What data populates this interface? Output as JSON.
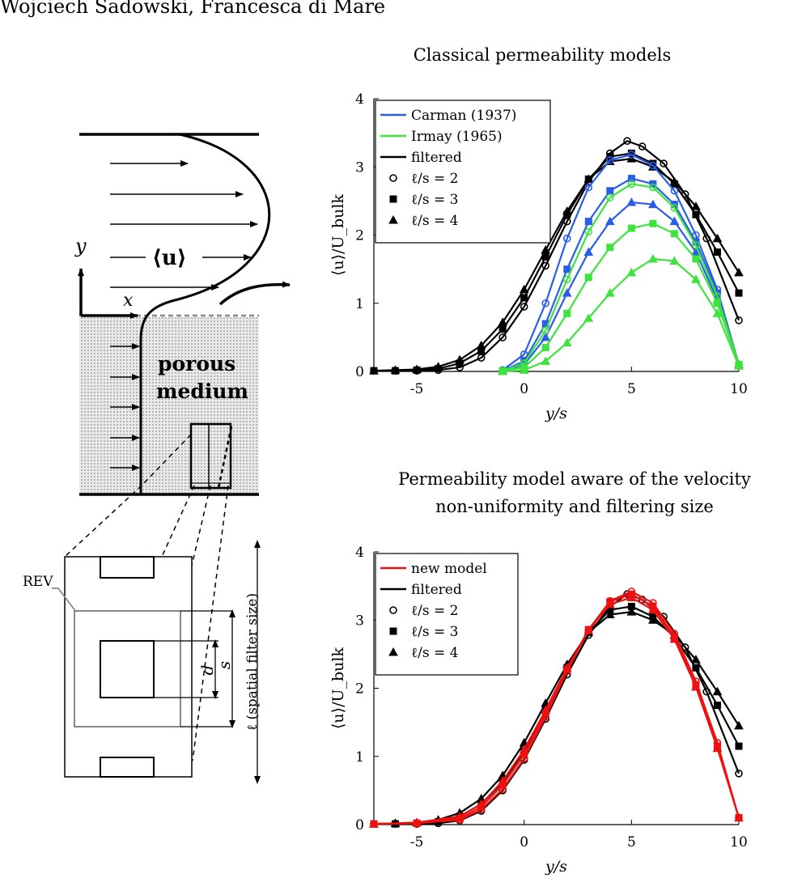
{
  "header": {
    "authors": "Wojciech Sadowski, Francesca di Mare"
  },
  "schematic": {
    "y_label": "y",
    "x_label": "x",
    "u_label": "⟨u⟩",
    "porous_label_1": "porous",
    "porous_label_2": "medium",
    "rev_label": "REV",
    "d_label": "d",
    "s_label": "s",
    "l_label": "ℓ (spatial filter size)"
  },
  "chart_data": [
    {
      "type": "line",
      "title": "Classical permeability models",
      "xlabel": "y/s",
      "ylabel": "⟨u⟩/U_bulk",
      "xlim": [
        -7,
        10
      ],
      "ylim": [
        0,
        4
      ],
      "xticks": [
        -5,
        0,
        5,
        10
      ],
      "yticks": [
        0,
        1,
        2,
        3,
        4
      ],
      "legend_position": "top-left",
      "legend": [
        "Carman (1937)",
        "Irmay (1965)",
        "filtered",
        "ℓ/s = 2",
        "ℓ/s = 3",
        "ℓ/s = 4"
      ],
      "colors": {
        "Carman (1937)": "#2a5ee8",
        "Irmay (1965)": "#3ee33e",
        "filtered": "#000000"
      },
      "series": [
        {
          "name": "filtered",
          "marker": "circle",
          "values": [
            [
              -7,
              0.01
            ],
            [
              -6,
              0.01
            ],
            [
              -5,
              0.01
            ],
            [
              -4,
              0.02
            ],
            [
              -3,
              0.06
            ],
            [
              -2,
              0.2
            ],
            [
              -1,
              0.5
            ],
            [
              0,
              0.95
            ],
            [
              1,
              1.55
            ],
            [
              2,
              2.2
            ],
            [
              3,
              2.78
            ],
            [
              4,
              3.2
            ],
            [
              4.8,
              3.38
            ],
            [
              5.5,
              3.3
            ],
            [
              6.5,
              3.05
            ],
            [
              7.5,
              2.6
            ],
            [
              8.5,
              1.95
            ],
            [
              10,
              0.75
            ]
          ]
        },
        {
          "name": "filtered",
          "marker": "square",
          "values": [
            [
              -7,
              0.01
            ],
            [
              -6,
              0.01
            ],
            [
              -5,
              0.02
            ],
            [
              -4,
              0.04
            ],
            [
              -3,
              0.12
            ],
            [
              -2,
              0.3
            ],
            [
              -1,
              0.62
            ],
            [
              0,
              1.08
            ],
            [
              1,
              1.68
            ],
            [
              2,
              2.3
            ],
            [
              3,
              2.82
            ],
            [
              4,
              3.15
            ],
            [
              5,
              3.2
            ],
            [
              6,
              3.05
            ],
            [
              7,
              2.75
            ],
            [
              8,
              2.3
            ],
            [
              9,
              1.75
            ],
            [
              10,
              1.15
            ]
          ]
        },
        {
          "name": "filtered",
          "marker": "triangle",
          "values": [
            [
              -7,
              0.01
            ],
            [
              -6,
              0.02
            ],
            [
              -5,
              0.03
            ],
            [
              -4,
              0.07
            ],
            [
              -3,
              0.17
            ],
            [
              -2,
              0.38
            ],
            [
              -1,
              0.72
            ],
            [
              0,
              1.2
            ],
            [
              1,
              1.78
            ],
            [
              2,
              2.35
            ],
            [
              3,
              2.82
            ],
            [
              4,
              3.08
            ],
            [
              5,
              3.12
            ],
            [
              6,
              3.0
            ],
            [
              7,
              2.78
            ],
            [
              8,
              2.42
            ],
            [
              9,
              1.95
            ],
            [
              10,
              1.45
            ]
          ]
        },
        {
          "name": "Carman (1937)",
          "marker": "circle",
          "values": [
            [
              -1,
              0.02
            ],
            [
              0,
              0.25
            ],
            [
              1,
              1.0
            ],
            [
              2,
              1.95
            ],
            [
              3,
              2.7
            ],
            [
              4,
              3.1
            ],
            [
              5,
              3.18
            ],
            [
              6,
              3.02
            ],
            [
              7,
              2.65
            ],
            [
              8,
              2.0
            ],
            [
              9,
              1.2
            ],
            [
              10,
              0.1
            ]
          ]
        },
        {
          "name": "Carman (1937)",
          "marker": "square",
          "values": [
            [
              -1,
              0.01
            ],
            [
              0,
              0.15
            ],
            [
              1,
              0.7
            ],
            [
              2,
              1.5
            ],
            [
              3,
              2.2
            ],
            [
              4,
              2.65
            ],
            [
              5,
              2.83
            ],
            [
              6,
              2.75
            ],
            [
              7,
              2.45
            ],
            [
              8,
              1.9
            ],
            [
              9,
              1.15
            ],
            [
              10,
              0.1
            ]
          ]
        },
        {
          "name": "Carman (1937)",
          "marker": "triangle",
          "values": [
            [
              -1,
              0.01
            ],
            [
              0,
              0.1
            ],
            [
              1,
              0.5
            ],
            [
              2,
              1.15
            ],
            [
              3,
              1.75
            ],
            [
              4,
              2.2
            ],
            [
              5,
              2.48
            ],
            [
              6,
              2.45
            ],
            [
              7,
              2.2
            ],
            [
              8,
              1.75
            ],
            [
              9,
              1.05
            ],
            [
              10,
              0.1
            ]
          ]
        },
        {
          "name": "Irmay (1965)",
          "marker": "circle",
          "values": [
            [
              -1,
              0.01
            ],
            [
              0,
              0.12
            ],
            [
              1,
              0.6
            ],
            [
              2,
              1.35
            ],
            [
              3,
              2.05
            ],
            [
              4,
              2.55
            ],
            [
              5,
              2.75
            ],
            [
              6,
              2.7
            ],
            [
              7,
              2.4
            ],
            [
              8,
              1.85
            ],
            [
              9,
              1.1
            ],
            [
              10,
              0.1
            ]
          ]
        },
        {
          "name": "Irmay (1965)",
          "marker": "square",
          "values": [
            [
              -1,
              0.01
            ],
            [
              0,
              0.06
            ],
            [
              1,
              0.35
            ],
            [
              2,
              0.85
            ],
            [
              3,
              1.38
            ],
            [
              4,
              1.82
            ],
            [
              5,
              2.1
            ],
            [
              6,
              2.17
            ],
            [
              7,
              2.02
            ],
            [
              8,
              1.65
            ],
            [
              9,
              1.0
            ],
            [
              10,
              0.1
            ]
          ]
        },
        {
          "name": "Irmay (1965)",
          "marker": "triangle",
          "values": [
            [
              -1,
              0.0
            ],
            [
              0,
              0.02
            ],
            [
              1,
              0.15
            ],
            [
              2,
              0.42
            ],
            [
              3,
              0.78
            ],
            [
              4,
              1.15
            ],
            [
              5,
              1.45
            ],
            [
              6,
              1.65
            ],
            [
              7,
              1.62
            ],
            [
              8,
              1.35
            ],
            [
              9,
              0.85
            ],
            [
              10,
              0.08
            ]
          ]
        }
      ]
    },
    {
      "type": "line",
      "title": "Permeability model aware of the velocity non-uniformity and filtering size",
      "title_lines": [
        "Permeability model aware of the velocity",
        "non-uniformity and filtering size"
      ],
      "xlabel": "y/s",
      "ylabel": "⟨u⟩/U_bulk",
      "xlim": [
        -7,
        10
      ],
      "ylim": [
        0,
        4
      ],
      "xticks": [
        -5,
        0,
        5,
        10
      ],
      "yticks": [
        0,
        1,
        2,
        3,
        4
      ],
      "legend_position": "top-left",
      "legend": [
        "new model",
        "filtered",
        "ℓ/s = 2",
        "ℓ/s = 3",
        "ℓ/s = 4"
      ],
      "colors": {
        "new model": "#ee1111",
        "filtered": "#000000"
      },
      "series": [
        {
          "name": "filtered",
          "marker": "circle",
          "values": [
            [
              -7,
              0.01
            ],
            [
              -6,
              0.01
            ],
            [
              -5,
              0.01
            ],
            [
              -4,
              0.02
            ],
            [
              -3,
              0.06
            ],
            [
              -2,
              0.2
            ],
            [
              -1,
              0.5
            ],
            [
              0,
              0.95
            ],
            [
              1,
              1.55
            ],
            [
              2,
              2.2
            ],
            [
              3,
              2.78
            ],
            [
              4,
              3.2
            ],
            [
              4.8,
              3.38
            ],
            [
              5.5,
              3.3
            ],
            [
              6.5,
              3.05
            ],
            [
              7.5,
              2.6
            ],
            [
              8.5,
              1.95
            ],
            [
              10,
              0.75
            ]
          ]
        },
        {
          "name": "filtered",
          "marker": "square",
          "values": [
            [
              -7,
              0.01
            ],
            [
              -6,
              0.01
            ],
            [
              -5,
              0.02
            ],
            [
              -4,
              0.04
            ],
            [
              -3,
              0.12
            ],
            [
              -2,
              0.3
            ],
            [
              -1,
              0.62
            ],
            [
              0,
              1.08
            ],
            [
              1,
              1.68
            ],
            [
              2,
              2.3
            ],
            [
              3,
              2.82
            ],
            [
              4,
              3.15
            ],
            [
              5,
              3.2
            ],
            [
              6,
              3.05
            ],
            [
              7,
              2.75
            ],
            [
              8,
              2.3
            ],
            [
              9,
              1.75
            ],
            [
              10,
              1.15
            ]
          ]
        },
        {
          "name": "filtered",
          "marker": "triangle",
          "values": [
            [
              -7,
              0.01
            ],
            [
              -6,
              0.02
            ],
            [
              -5,
              0.03
            ],
            [
              -4,
              0.07
            ],
            [
              -3,
              0.17
            ],
            [
              -2,
              0.38
            ],
            [
              -1,
              0.72
            ],
            [
              0,
              1.2
            ],
            [
              1,
              1.78
            ],
            [
              2,
              2.35
            ],
            [
              3,
              2.82
            ],
            [
              4,
              3.08
            ],
            [
              5,
              3.12
            ],
            [
              6,
              3.0
            ],
            [
              7,
              2.78
            ],
            [
              8,
              2.42
            ],
            [
              9,
              1.95
            ],
            [
              10,
              1.45
            ]
          ]
        },
        {
          "name": "new model",
          "marker": "circle",
          "values": [
            [
              -7,
              0.01
            ],
            [
              -5,
              0.02
            ],
            [
              -3,
              0.07
            ],
            [
              -2,
              0.22
            ],
            [
              -1,
              0.52
            ],
            [
              0,
              0.97
            ],
            [
              1,
              1.58
            ],
            [
              2,
              2.25
            ],
            [
              3,
              2.85
            ],
            [
              4,
              3.28
            ],
            [
              5,
              3.42
            ],
            [
              6,
              3.25
            ],
            [
              7,
              2.8
            ],
            [
              8,
              2.1
            ],
            [
              9,
              1.2
            ],
            [
              10,
              0.1
            ]
          ]
        },
        {
          "name": "new model",
          "marker": "square",
          "values": [
            [
              -7,
              0.01
            ],
            [
              -5,
              0.02
            ],
            [
              -3,
              0.09
            ],
            [
              -2,
              0.26
            ],
            [
              -1,
              0.58
            ],
            [
              0,
              1.03
            ],
            [
              1,
              1.63
            ],
            [
              2,
              2.28
            ],
            [
              3,
              2.86
            ],
            [
              4,
              3.27
            ],
            [
              5,
              3.38
            ],
            [
              6,
              3.2
            ],
            [
              7,
              2.75
            ],
            [
              8,
              2.05
            ],
            [
              9,
              1.15
            ],
            [
              10,
              0.1
            ]
          ]
        },
        {
          "name": "new model",
          "marker": "triangle",
          "values": [
            [
              -7,
              0.01
            ],
            [
              -5,
              0.03
            ],
            [
              -3,
              0.12
            ],
            [
              -2,
              0.3
            ],
            [
              -1,
              0.64
            ],
            [
              0,
              1.1
            ],
            [
              1,
              1.68
            ],
            [
              2,
              2.3
            ],
            [
              3,
              2.85
            ],
            [
              4,
              3.23
            ],
            [
              5,
              3.33
            ],
            [
              6,
              3.15
            ],
            [
              7,
              2.72
            ],
            [
              8,
              2.02
            ],
            [
              9,
              1.12
            ],
            [
              10,
              0.1
            ]
          ]
        }
      ]
    }
  ]
}
